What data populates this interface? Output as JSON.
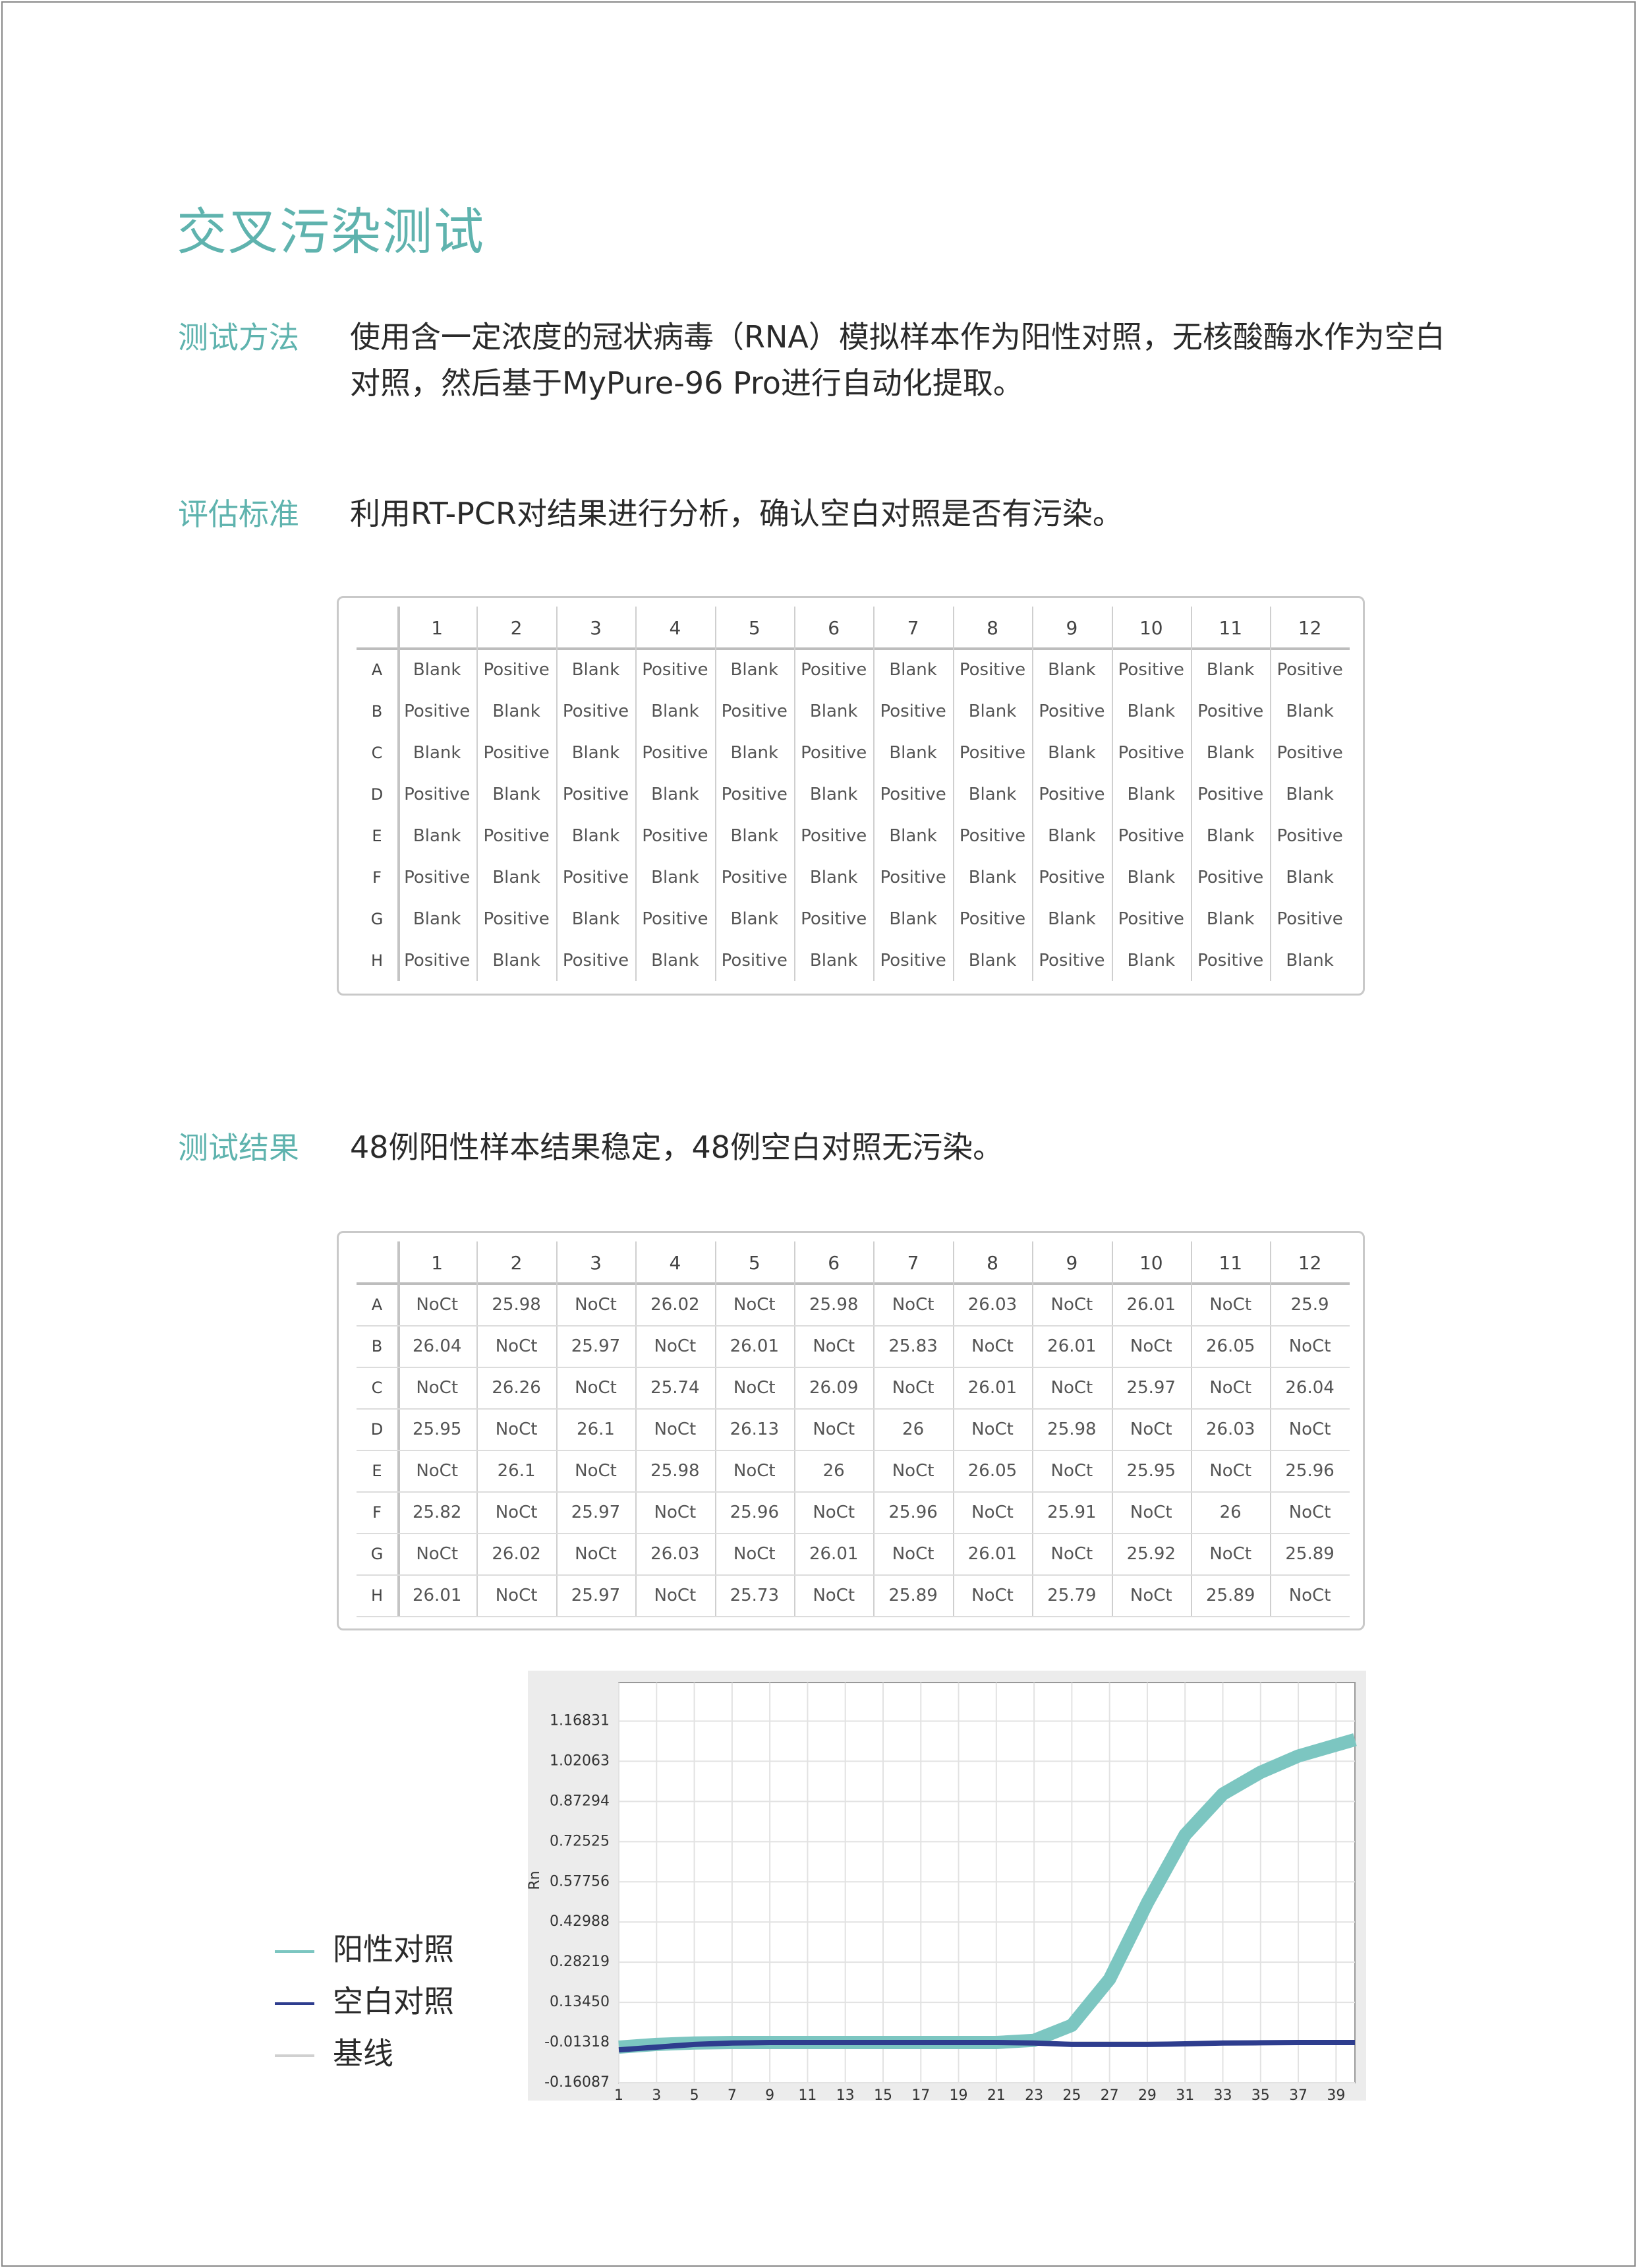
{
  "title": "交叉污染测试",
  "sections": [
    {
      "label": "测试方法",
      "text": "使用含一定浓度的冠状病毒（RNA）模拟样本作为阳性对照，无核酸酶水作为空白对照，然后基于MyPure-96 Pro进行自动化提取。"
    },
    {
      "label": "评估标准",
      "text": "利用RT-PCR对结果进行分析，确认空白对照是否有污染。"
    },
    {
      "label": "测试结果",
      "text": "48例阳性样本结果稳定，48例空白对照无污染。"
    }
  ],
  "layout_table": {
    "columns": [
      "1",
      "2",
      "3",
      "4",
      "5",
      "6",
      "7",
      "8",
      "9",
      "10",
      "11",
      "12"
    ],
    "rows": [
      {
        "label": "A",
        "cells": [
          "Blank",
          "Positive",
          "Blank",
          "Positive",
          "Blank",
          "Positive",
          "Blank",
          "Positive",
          "Blank",
          "Positive",
          "Blank",
          "Positive"
        ]
      },
      {
        "label": "B",
        "cells": [
          "Positive",
          "Blank",
          "Positive",
          "Blank",
          "Positive",
          "Blank",
          "Positive",
          "Blank",
          "Positive",
          "Blank",
          "Positive",
          "Blank"
        ]
      },
      {
        "label": "C",
        "cells": [
          "Blank",
          "Positive",
          "Blank",
          "Positive",
          "Blank",
          "Positive",
          "Blank",
          "Positive",
          "Blank",
          "Positive",
          "Blank",
          "Positive"
        ]
      },
      {
        "label": "D",
        "cells": [
          "Positive",
          "Blank",
          "Positive",
          "Blank",
          "Positive",
          "Blank",
          "Positive",
          "Blank",
          "Positive",
          "Blank",
          "Positive",
          "Blank"
        ]
      },
      {
        "label": "E",
        "cells": [
          "Blank",
          "Positive",
          "Blank",
          "Positive",
          "Blank",
          "Positive",
          "Blank",
          "Positive",
          "Blank",
          "Positive",
          "Blank",
          "Positive"
        ]
      },
      {
        "label": "F",
        "cells": [
          "Positive",
          "Blank",
          "Positive",
          "Blank",
          "Positive",
          "Blank",
          "Positive",
          "Blank",
          "Positive",
          "Blank",
          "Positive",
          "Blank"
        ]
      },
      {
        "label": "G",
        "cells": [
          "Blank",
          "Positive",
          "Blank",
          "Positive",
          "Blank",
          "Positive",
          "Blank",
          "Positive",
          "Blank",
          "Positive",
          "Blank",
          "Positive"
        ]
      },
      {
        "label": "H",
        "cells": [
          "Positive",
          "Blank",
          "Positive",
          "Blank",
          "Positive",
          "Blank",
          "Positive",
          "Blank",
          "Positive",
          "Blank",
          "Positive",
          "Blank"
        ]
      }
    ]
  },
  "results_table": {
    "columns": [
      "1",
      "2",
      "3",
      "4",
      "5",
      "6",
      "7",
      "8",
      "9",
      "10",
      "11",
      "12"
    ],
    "rows": [
      {
        "label": "A",
        "cells": [
          "NoCt",
          "25.98",
          "NoCt",
          "26.02",
          "NoCt",
          "25.98",
          "NoCt",
          "26.03",
          "NoCt",
          "26.01",
          "NoCt",
          "25.9"
        ]
      },
      {
        "label": "B",
        "cells": [
          "26.04",
          "NoCt",
          "25.97",
          "NoCt",
          "26.01",
          "NoCt",
          "25.83",
          "NoCt",
          "26.01",
          "NoCt",
          "26.05",
          "NoCt"
        ]
      },
      {
        "label": "C",
        "cells": [
          "NoCt",
          "26.26",
          "NoCt",
          "25.74",
          "NoCt",
          "26.09",
          "NoCt",
          "26.01",
          "NoCt",
          "25.97",
          "NoCt",
          "26.04"
        ]
      },
      {
        "label": "D",
        "cells": [
          "25.95",
          "NoCt",
          "26.1",
          "NoCt",
          "26.13",
          "NoCt",
          "26",
          "NoCt",
          "25.98",
          "NoCt",
          "26.03",
          "NoCt"
        ]
      },
      {
        "label": "E",
        "cells": [
          "NoCt",
          "26.1",
          "NoCt",
          "25.98",
          "NoCt",
          "26",
          "NoCt",
          "26.05",
          "NoCt",
          "25.95",
          "NoCt",
          "25.96"
        ]
      },
      {
        "label": "F",
        "cells": [
          "25.82",
          "NoCt",
          "25.97",
          "NoCt",
          "25.96",
          "NoCt",
          "25.96",
          "NoCt",
          "25.91",
          "NoCt",
          "26",
          "NoCt"
        ]
      },
      {
        "label": "G",
        "cells": [
          "NoCt",
          "26.02",
          "NoCt",
          "26.03",
          "NoCt",
          "26.01",
          "NoCt",
          "26.01",
          "NoCt",
          "25.92",
          "NoCt",
          "25.89"
        ]
      },
      {
        "label": "H",
        "cells": [
          "26.01",
          "NoCt",
          "25.97",
          "NoCt",
          "25.73",
          "NoCt",
          "25.89",
          "NoCt",
          "25.79",
          "NoCt",
          "25.89",
          "NoCt"
        ]
      }
    ]
  },
  "chart_data": {
    "type": "line",
    "y_label": "Rn",
    "x": [
      1,
      3,
      5,
      7,
      9,
      11,
      13,
      15,
      17,
      19,
      21,
      23,
      25,
      27,
      29,
      31,
      33,
      35,
      37,
      39,
      40
    ],
    "xlim": [
      1,
      40
    ],
    "xticks": [
      1,
      3,
      5,
      7,
      9,
      11,
      13,
      15,
      17,
      19,
      21,
      23,
      25,
      27,
      29,
      31,
      33,
      35,
      37,
      39
    ],
    "ylim": [
      -0.16087,
      1.31
    ],
    "yticks": [
      -0.16087,
      -0.01318,
      {
        "value": 0.1345,
        "label": "0.13450"
      },
      0.28219,
      0.42988,
      0.57756,
      0.72525,
      0.87294,
      1.02063,
      1.16831
    ],
    "grid": true,
    "series": [
      {
        "name": "阳性对照",
        "color": "#7cc6c1",
        "values": [
          -0.03,
          -0.02,
          -0.015,
          -0.013,
          -0.013,
          -0.013,
          -0.013,
          -0.013,
          -0.013,
          -0.013,
          -0.013,
          -0.005,
          0.05,
          0.22,
          0.5,
          0.75,
          0.9,
          0.98,
          1.04,
          1.08,
          1.1
        ]
      },
      {
        "name": "空白对照",
        "color": "#2e3d8e",
        "values": [
          -0.04,
          -0.03,
          -0.02,
          -0.015,
          -0.013,
          -0.013,
          -0.013,
          -0.013,
          -0.013,
          -0.013,
          -0.013,
          -0.015,
          -0.02,
          -0.02,
          -0.02,
          -0.018,
          -0.015,
          -0.014,
          -0.013,
          -0.013,
          -0.013
        ]
      },
      {
        "name": "基线",
        "color": "#d0d0d0",
        "values": [
          -0.01318,
          -0.01318,
          -0.01318,
          -0.01318,
          -0.01318,
          -0.01318,
          -0.01318,
          -0.01318,
          -0.01318,
          -0.01318,
          -0.01318,
          -0.01318,
          -0.01318,
          -0.01318,
          -0.01318,
          -0.01318,
          -0.01318,
          -0.01318,
          -0.01318,
          -0.01318,
          -0.01318
        ]
      }
    ]
  }
}
